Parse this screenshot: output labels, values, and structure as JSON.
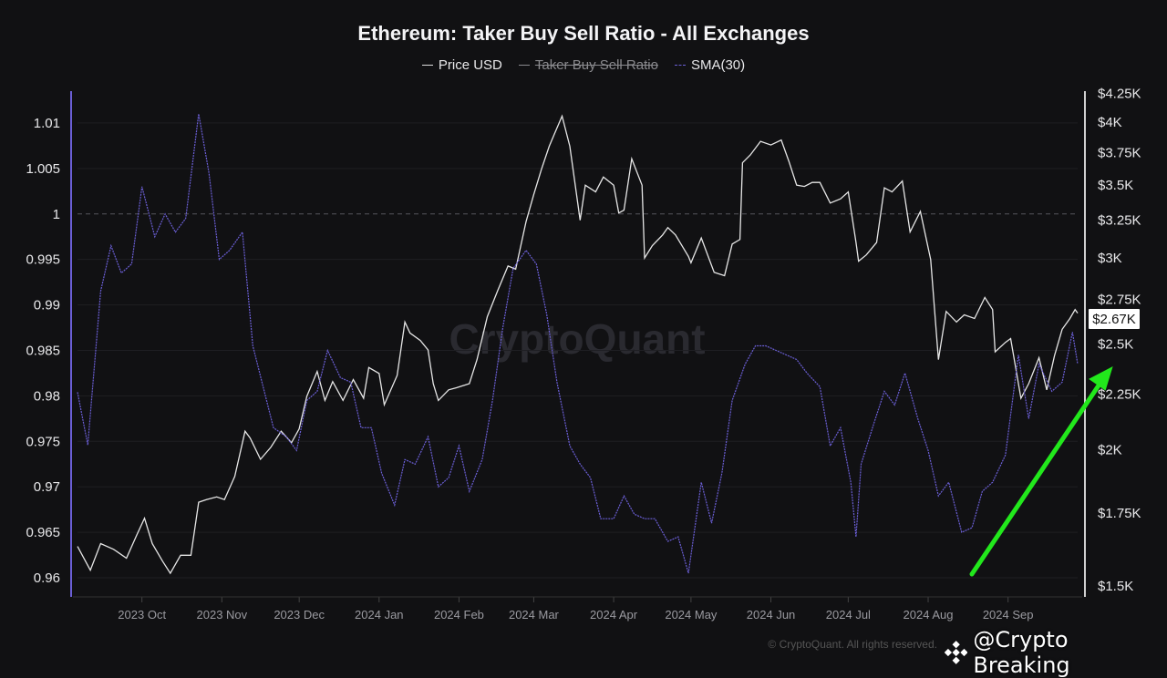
{
  "chart_data": {
    "type": "line",
    "title": "Ethereum: Taker Buy Sell Ratio - All Exchanges",
    "legend": [
      {
        "name": "Price USD",
        "color": "#e6e6e6",
        "enabled": true
      },
      {
        "name": "Taker Buy Sell Ratio",
        "color": "#8a8a8e",
        "enabled": false
      },
      {
        "name": "SMA(30)",
        "color": "#6b5fd6",
        "enabled": true,
        "style": "dashed"
      }
    ],
    "legend_placement": "top-center",
    "x_range": [
      "2023-09-06",
      "2024-09-28"
    ],
    "x_ticks": [
      "2023 Oct",
      "2023 Nov",
      "2023 Dec",
      "2024 Jan",
      "2024 Feb",
      "2024 Mar",
      "2024 Apr",
      "2024 May",
      "2024 Jun",
      "2024 Jul",
      "2024 Aug",
      "2024 Sep"
    ],
    "x_tick_dates": [
      "2023-10-01",
      "2023-11-01",
      "2023-12-01",
      "2024-01-01",
      "2024-02-01",
      "2024-03-01",
      "2024-04-01",
      "2024-05-01",
      "2024-06-01",
      "2024-07-01",
      "2024-08-01",
      "2024-09-01"
    ],
    "y_left": {
      "ticks": [
        "1.01",
        "1.005",
        "1",
        "0.995",
        "0.99",
        "0.985",
        "0.98",
        "0.975",
        "0.97",
        "0.965",
        "0.96"
      ],
      "range": [
        0.9579,
        1.0135
      ],
      "reference_line": 1,
      "color": "#6b5fd6"
    },
    "y_right": {
      "ticks": [
        "$4.25K",
        "$4K",
        "$3.75K",
        "$3.5K",
        "$3.25K",
        "$3K",
        "$2.75K",
        "$2.5K",
        "$2.25K",
        "$2K",
        "$1.75K",
        "$1.5K"
      ],
      "tick_values": [
        4250,
        4000,
        3750,
        3500,
        3250,
        3000,
        2750,
        2500,
        2250,
        2000,
        1750,
        1500
      ],
      "range": [
        1465,
        4270
      ],
      "scale": "log"
    },
    "grid": true,
    "last_price_label": "$2.67K",
    "series": [
      {
        "name": "Price USD",
        "axis": "right",
        "color": "#e6e6e6",
        "points": [
          [
            "2023-09-06",
            1630
          ],
          [
            "2023-09-11",
            1550
          ],
          [
            "2023-09-15",
            1640
          ],
          [
            "2023-09-20",
            1620
          ],
          [
            "2023-09-25",
            1590
          ],
          [
            "2023-09-29",
            1670
          ],
          [
            "2023-10-02",
            1730
          ],
          [
            "2023-10-05",
            1640
          ],
          [
            "2023-10-09",
            1580
          ],
          [
            "2023-10-12",
            1540
          ],
          [
            "2023-10-16",
            1600
          ],
          [
            "2023-10-20",
            1600
          ],
          [
            "2023-10-23",
            1790
          ],
          [
            "2023-10-26",
            1800
          ],
          [
            "2023-10-30",
            1810
          ],
          [
            "2023-11-02",
            1800
          ],
          [
            "2023-11-06",
            1890
          ],
          [
            "2023-11-10",
            2080
          ],
          [
            "2023-11-12",
            2050
          ],
          [
            "2023-11-16",
            1960
          ],
          [
            "2023-11-20",
            2010
          ],
          [
            "2023-11-24",
            2080
          ],
          [
            "2023-11-28",
            2030
          ],
          [
            "2023-12-01",
            2090
          ],
          [
            "2023-12-04",
            2240
          ],
          [
            "2023-12-08",
            2360
          ],
          [
            "2023-12-11",
            2220
          ],
          [
            "2023-12-14",
            2310
          ],
          [
            "2023-12-18",
            2220
          ],
          [
            "2023-12-22",
            2320
          ],
          [
            "2023-12-26",
            2230
          ],
          [
            "2023-12-28",
            2380
          ],
          [
            "2024-01-01",
            2350
          ],
          [
            "2024-01-03",
            2200
          ],
          [
            "2024-01-08",
            2340
          ],
          [
            "2024-01-11",
            2620
          ],
          [
            "2024-01-13",
            2560
          ],
          [
            "2024-01-17",
            2520
          ],
          [
            "2024-01-20",
            2470
          ],
          [
            "2024-01-22",
            2300
          ],
          [
            "2024-01-24",
            2220
          ],
          [
            "2024-01-28",
            2270
          ],
          [
            "2024-01-31",
            2280
          ],
          [
            "2024-02-05",
            2300
          ],
          [
            "2024-02-08",
            2420
          ],
          [
            "2024-02-12",
            2650
          ],
          [
            "2024-02-16",
            2800
          ],
          [
            "2024-02-20",
            2950
          ],
          [
            "2024-02-23",
            2930
          ],
          [
            "2024-02-27",
            3240
          ],
          [
            "2024-03-01",
            3430
          ],
          [
            "2024-03-04",
            3620
          ],
          [
            "2024-03-07",
            3800
          ],
          [
            "2024-03-09",
            3900
          ],
          [
            "2024-03-12",
            4050
          ],
          [
            "2024-03-15",
            3800
          ],
          [
            "2024-03-19",
            3250
          ],
          [
            "2024-03-21",
            3500
          ],
          [
            "2024-03-25",
            3450
          ],
          [
            "2024-03-28",
            3560
          ],
          [
            "2024-04-01",
            3500
          ],
          [
            "2024-04-03",
            3300
          ],
          [
            "2024-04-05",
            3320
          ],
          [
            "2024-04-08",
            3700
          ],
          [
            "2024-04-12",
            3500
          ],
          [
            "2024-04-13",
            3000
          ],
          [
            "2024-04-16",
            3080
          ],
          [
            "2024-04-20",
            3150
          ],
          [
            "2024-04-22",
            3200
          ],
          [
            "2024-04-25",
            3150
          ],
          [
            "2024-04-30",
            3010
          ],
          [
            "2024-05-01",
            2970
          ],
          [
            "2024-05-05",
            3130
          ],
          [
            "2024-05-10",
            2910
          ],
          [
            "2024-05-14",
            2890
          ],
          [
            "2024-05-17",
            3090
          ],
          [
            "2024-05-20",
            3120
          ],
          [
            "2024-05-21",
            3670
          ],
          [
            "2024-05-24",
            3730
          ],
          [
            "2024-05-28",
            3840
          ],
          [
            "2024-06-01",
            3810
          ],
          [
            "2024-06-05",
            3850
          ],
          [
            "2024-06-08",
            3680
          ],
          [
            "2024-06-11",
            3500
          ],
          [
            "2024-06-14",
            3490
          ],
          [
            "2024-06-17",
            3520
          ],
          [
            "2024-06-20",
            3520
          ],
          [
            "2024-06-24",
            3370
          ],
          [
            "2024-06-28",
            3400
          ],
          [
            "2024-07-01",
            3450
          ],
          [
            "2024-07-04",
            3100
          ],
          [
            "2024-07-05",
            2980
          ],
          [
            "2024-07-08",
            3020
          ],
          [
            "2024-07-12",
            3100
          ],
          [
            "2024-07-15",
            3480
          ],
          [
            "2024-07-18",
            3450
          ],
          [
            "2024-07-22",
            3530
          ],
          [
            "2024-07-25",
            3170
          ],
          [
            "2024-07-29",
            3310
          ],
          [
            "2024-08-02",
            2990
          ],
          [
            "2024-08-05",
            2420
          ],
          [
            "2024-08-08",
            2680
          ],
          [
            "2024-08-12",
            2620
          ],
          [
            "2024-08-15",
            2660
          ],
          [
            "2024-08-19",
            2640
          ],
          [
            "2024-08-23",
            2760
          ],
          [
            "2024-08-26",
            2690
          ],
          [
            "2024-08-27",
            2460
          ],
          [
            "2024-08-31",
            2510
          ],
          [
            "2024-09-02",
            2530
          ],
          [
            "2024-09-06",
            2230
          ],
          [
            "2024-09-09",
            2300
          ],
          [
            "2024-09-13",
            2430
          ],
          [
            "2024-09-16",
            2270
          ],
          [
            "2024-09-19",
            2440
          ],
          [
            "2024-09-22",
            2580
          ],
          [
            "2024-09-25",
            2640
          ],
          [
            "2024-09-27",
            2690
          ],
          [
            "2024-09-28",
            2670
          ]
        ]
      },
      {
        "name": "SMA(30)",
        "axis": "left",
        "color": "#6b5fd6",
        "points": [
          [
            "2023-09-06",
            0.9804
          ],
          [
            "2023-09-10",
            0.9746
          ],
          [
            "2023-09-15",
            0.9915
          ],
          [
            "2023-09-19",
            0.9965
          ],
          [
            "2023-09-23",
            0.9935
          ],
          [
            "2023-09-27",
            0.9945
          ],
          [
            "2023-10-01",
            1.003
          ],
          [
            "2023-10-06",
            0.9975
          ],
          [
            "2023-10-10",
            1.0
          ],
          [
            "2023-10-14",
            0.998
          ],
          [
            "2023-10-18",
            0.9995
          ],
          [
            "2023-10-23",
            1.011
          ],
          [
            "2023-10-27",
            1.0045
          ],
          [
            "2023-10-31",
            0.995
          ],
          [
            "2023-11-04",
            0.996
          ],
          [
            "2023-11-09",
            0.998
          ],
          [
            "2023-11-13",
            0.9855
          ],
          [
            "2023-11-17",
            0.981
          ],
          [
            "2023-11-21",
            0.9765
          ],
          [
            "2023-11-26",
            0.9755
          ],
          [
            "2023-11-30",
            0.974
          ],
          [
            "2023-12-04",
            0.9795
          ],
          [
            "2023-12-08",
            0.9805
          ],
          [
            "2023-12-12",
            0.985
          ],
          [
            "2023-12-17",
            0.982
          ],
          [
            "2023-12-21",
            0.9815
          ],
          [
            "2023-12-25",
            0.9765
          ],
          [
            "2023-12-29",
            0.9765
          ],
          [
            "2024-01-02",
            0.9715
          ],
          [
            "2024-01-07",
            0.968
          ],
          [
            "2024-01-11",
            0.973
          ],
          [
            "2024-01-15",
            0.9725
          ],
          [
            "2024-01-20",
            0.9755
          ],
          [
            "2024-01-24",
            0.97
          ],
          [
            "2024-01-28",
            0.971
          ],
          [
            "2024-02-01",
            0.9745
          ],
          [
            "2024-02-05",
            0.9695
          ],
          [
            "2024-02-10",
            0.973
          ],
          [
            "2024-02-14",
            0.9795
          ],
          [
            "2024-02-18",
            0.9875
          ],
          [
            "2024-02-22",
            0.994
          ],
          [
            "2024-02-27",
            0.996
          ],
          [
            "2024-03-02",
            0.9945
          ],
          [
            "2024-03-06",
            0.989
          ],
          [
            "2024-03-10",
            0.9815
          ],
          [
            "2024-03-15",
            0.9745
          ],
          [
            "2024-03-19",
            0.9725
          ],
          [
            "2024-03-23",
            0.971
          ],
          [
            "2024-03-27",
            0.9665
          ],
          [
            "2024-04-01",
            0.9665
          ],
          [
            "2024-04-05",
            0.969
          ],
          [
            "2024-04-09",
            0.967
          ],
          [
            "2024-04-13",
            0.9665
          ],
          [
            "2024-04-17",
            0.9665
          ],
          [
            "2024-04-22",
            0.964
          ],
          [
            "2024-04-26",
            0.9645
          ],
          [
            "2024-04-30",
            0.9605
          ],
          [
            "2024-05-05",
            0.9705
          ],
          [
            "2024-05-09",
            0.966
          ],
          [
            "2024-05-13",
            0.9715
          ],
          [
            "2024-05-17",
            0.9795
          ],
          [
            "2024-05-22",
            0.9835
          ],
          [
            "2024-05-26",
            0.9855
          ],
          [
            "2024-05-30",
            0.9855
          ],
          [
            "2024-06-03",
            0.985
          ],
          [
            "2024-06-07",
            0.9845
          ],
          [
            "2024-06-11",
            0.984
          ],
          [
            "2024-06-15",
            0.9825
          ],
          [
            "2024-06-20",
            0.981
          ],
          [
            "2024-06-24",
            0.9745
          ],
          [
            "2024-06-28",
            0.9765
          ],
          [
            "2024-07-02",
            0.9705
          ],
          [
            "2024-07-04",
            0.9645
          ],
          [
            "2024-07-06",
            0.9725
          ],
          [
            "2024-07-11",
            0.977
          ],
          [
            "2024-07-15",
            0.9805
          ],
          [
            "2024-07-19",
            0.979
          ],
          [
            "2024-07-23",
            0.9825
          ],
          [
            "2024-07-28",
            0.9775
          ],
          [
            "2024-08-01",
            0.974
          ],
          [
            "2024-08-05",
            0.969
          ],
          [
            "2024-08-09",
            0.9705
          ],
          [
            "2024-08-14",
            0.965
          ],
          [
            "2024-08-18",
            0.9655
          ],
          [
            "2024-08-22",
            0.9695
          ],
          [
            "2024-08-26",
            0.9705
          ],
          [
            "2024-08-31",
            0.9735
          ],
          [
            "2024-09-05",
            0.9845
          ],
          [
            "2024-09-09",
            0.9775
          ],
          [
            "2024-09-13",
            0.9835
          ],
          [
            "2024-09-18",
            0.9805
          ],
          [
            "2024-09-22",
            0.9815
          ],
          [
            "2024-09-26",
            0.987
          ],
          [
            "2024-09-28",
            0.9835
          ]
        ]
      }
    ],
    "annotation": {
      "type": "arrow",
      "color": "#22e81c",
      "direction": "up-right"
    }
  },
  "watermark": "CryptoQuant",
  "credit": "@Crypto Breaking",
  "copyright": "© CryptoQuant. All rights reserved."
}
